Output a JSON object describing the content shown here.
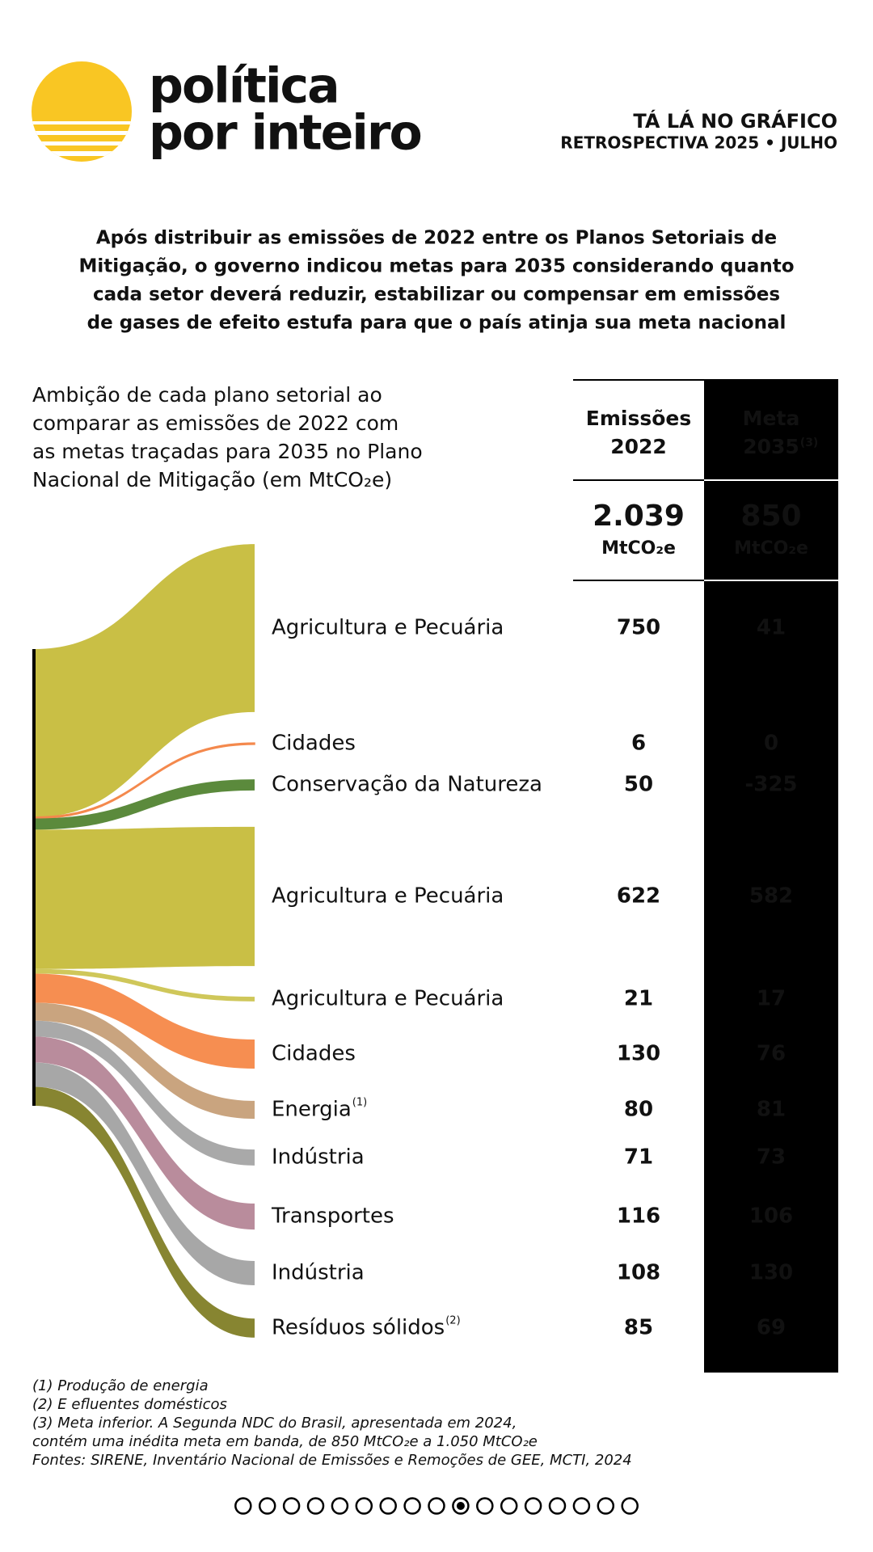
{
  "brand": [
    "política",
    "por inteiro"
  ],
  "kicker": [
    "TÁ LÁ NO GRÁFICO",
    "RETROSPECTIVA 2025 • JULHO"
  ],
  "chart_data": {
    "type": "sankey",
    "title": [
      "Após distribuir as emissões de 2022 entre os Planos Setoriais de",
      "Mitigação, o governo indicou metas para 2035 considerando quanto",
      "cada setor deverá reduzir, estabilizar ou compensar em emissões",
      "de gases de efeito estufa para que o país atinja sua meta nacional"
    ],
    "subtitle": [
      "Ambição de cada plano setorial ao",
      "comparar as emissões de 2022 com",
      "as metas traçadas para 2035 no Plano",
      "Nacional de Mitigação (em MtCO₂e)"
    ],
    "categories": [
      "Agricultura e Pecuária",
      "Cidades",
      "Conservação da Natureza",
      "Agricultura e Pecuária",
      "Agricultura e Pecuária",
      "Cidades",
      "Energia",
      "Indústria",
      "Transportes",
      "Indústria",
      "Resíduos sólidos"
    ],
    "category_notes": [
      null,
      null,
      null,
      null,
      null,
      null,
      "(1)",
      null,
      null,
      null,
      "(2)"
    ],
    "colors": [
      "#c9bf45",
      "#f4894d",
      "#5b8a3c",
      "#c9bf45",
      "#cfc75a",
      "#f68e51",
      "#c9a47f",
      "#a9a9a9",
      "#b98c9c",
      "#a7a7a7",
      "#878531"
    ],
    "series": [
      {
        "name": "Emissões 2022",
        "values": [
          750,
          6,
          50,
          622,
          21,
          130,
          80,
          71,
          116,
          108,
          85
        ]
      },
      {
        "name": "Meta 2035",
        "name_note": "(3)",
        "values": [
          41,
          0,
          -325,
          582,
          17,
          76,
          81,
          73,
          106,
          130,
          69
        ]
      }
    ],
    "totals": [
      {
        "value": 2039,
        "label": "2.039"
      },
      {
        "value": 850,
        "label": "850"
      }
    ],
    "unit": "MtCO₂e",
    "notes": [
      "(1) Produção de energia",
      "(2) E efluentes domésticos",
      "(3) Meta inferior. A Segunda NDC do Brasil, apresentada em 2024,",
      "contém uma inédita meta em banda, de 850 MtCO₂e a 1.050 MtCO₂e",
      "Fontes: SIRENE, Inventário Nacional de Emissões e Remoções de GEE, MCTI, 2024"
    ]
  }
}
